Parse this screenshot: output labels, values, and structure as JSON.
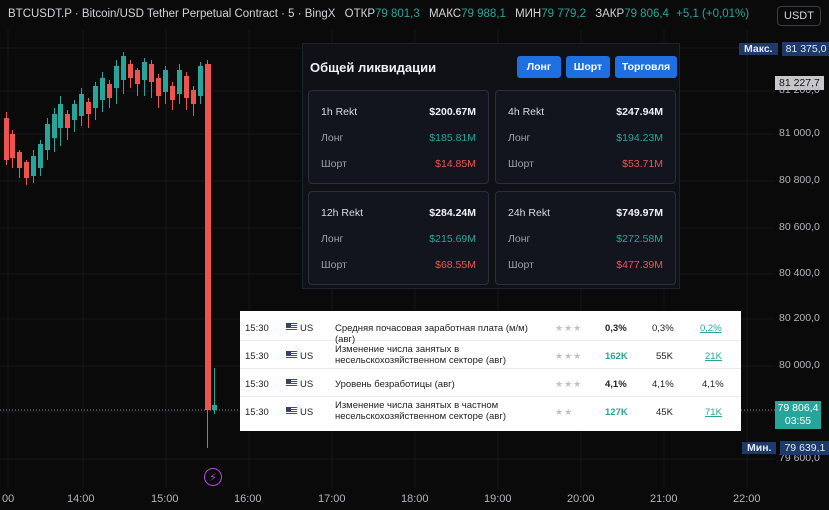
{
  "header": {
    "symbol": "BTCUSDT.P · Bitcoin/USD Tether Perpetual Contract · 5 · BingX",
    "open_label": "ОТКР",
    "open": "79 801,3",
    "high_label": "МАКС",
    "high": "79 988,1",
    "low_label": "МИН",
    "low": "79 779,2",
    "close_label": "ЗАКР",
    "close": "79 806,4",
    "change": "+5,1 (+0,01%)"
  },
  "currency_button": "USDT",
  "price_scale": {
    "max_label": "Макс.",
    "max_value": "81 375,0",
    "mark_value": "81 227,7",
    "current_price": "79 806,4",
    "countdown": "03:55",
    "min_label": "Мин.",
    "min_value": "79 639,1",
    "ticks": [
      "81 200,0",
      "81 000,0",
      "80 800,0",
      "80 600,0",
      "80 400,0",
      "80 200,0",
      "80 000,0",
      "79 600,0"
    ]
  },
  "time_axis": [
    "00",
    "14:00",
    "15:00",
    "16:00",
    "17:00",
    "18:00",
    "19:00",
    "20:00",
    "21:00",
    "22:00"
  ],
  "liquidations": {
    "title": "Общей ликвидации",
    "buttons": [
      "Лонг",
      "Шорт",
      "Торговля"
    ],
    "cards": [
      {
        "period": "1h Rekt",
        "total": "$200.67M",
        "long_label": "Лонг",
        "long": "$185.81M",
        "short_label": "Шорт",
        "short": "$14.85M"
      },
      {
        "period": "4h Rekt",
        "total": "$247.94M",
        "long_label": "Лонг",
        "long": "$194.23M",
        "short_label": "Шорт",
        "short": "$53.71M"
      },
      {
        "period": "12h Rekt",
        "total": "$284.24M",
        "long_label": "Лонг",
        "long": "$215.69M",
        "short_label": "Шорт",
        "short": "$68.55M"
      },
      {
        "period": "24h Rekt",
        "total": "$749.97M",
        "long_label": "Лонг",
        "long": "$272.58M",
        "short_label": "Шорт",
        "short": "$477.39M"
      }
    ]
  },
  "calendar": {
    "rows": [
      {
        "time": "15:30",
        "country": "US",
        "event": "Средняя почасовая заработная плата (м/м) (авг)",
        "importance": "★★★",
        "actual": "0,3%",
        "forecast": "0,3%",
        "previous": "0,2%"
      },
      {
        "time": "15:30",
        "country": "US",
        "event": "Изменение числа занятых в несельскохозяйственном секторе  (авг)",
        "importance": "★★★",
        "actual": "162K",
        "forecast": "55K",
        "previous": "21K"
      },
      {
        "time": "15:30",
        "country": "US",
        "event": "Уровень безработицы  (авг)",
        "importance": "★★★",
        "actual": "4,1%",
        "forecast": "4,1%",
        "previous": "4,1%"
      },
      {
        "time": "15:30",
        "country": "US",
        "event": "Изменение числа занятых в частном несельскохозяйственном секторе  (авг)",
        "importance": "★★",
        "actual": "127K",
        "forecast": "45K",
        "previous": "71K"
      }
    ]
  },
  "colors": {
    "up": "#26a69a",
    "down": "#ef5350",
    "background": "#0a0a0b"
  }
}
